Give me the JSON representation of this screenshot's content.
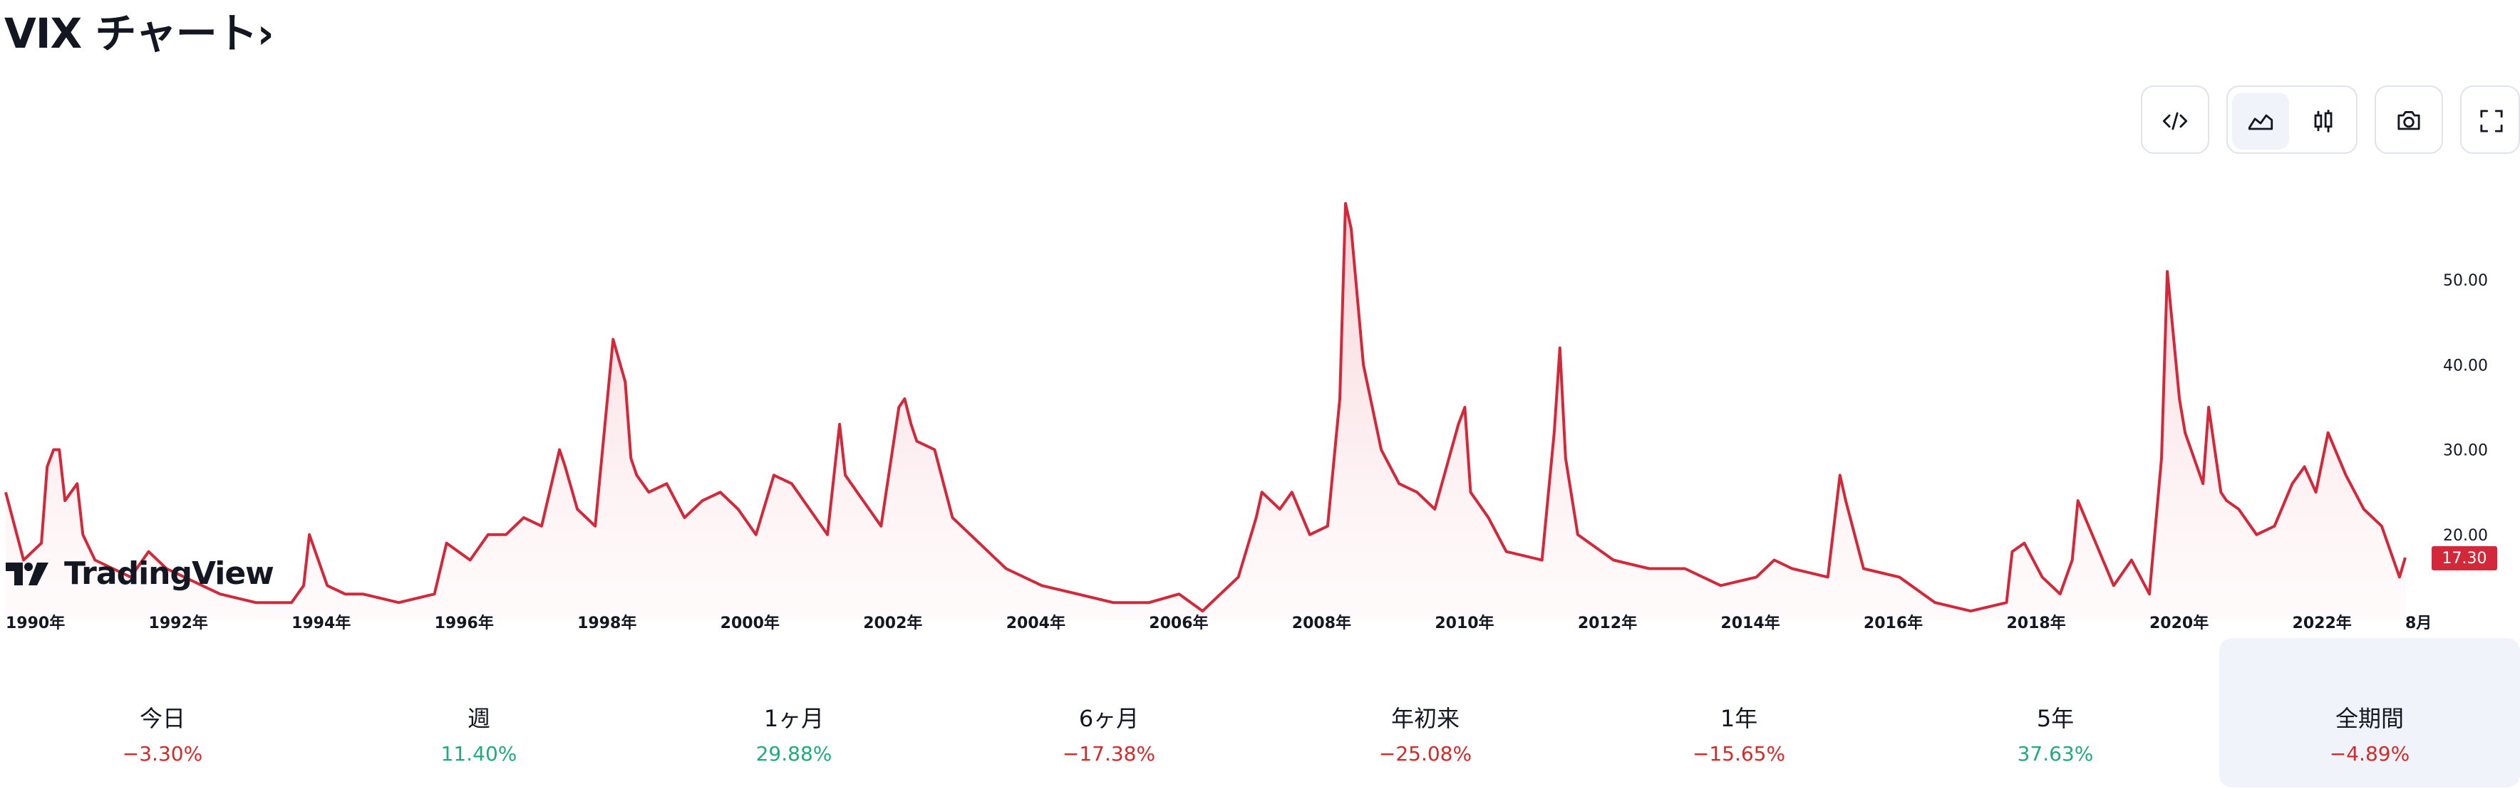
{
  "page_title": "VIX チャート›",
  "toolbar": {
    "embed_icon": "code-embed-icon",
    "area_icon": "area-chart-icon",
    "candle_icon": "candlestick-icon",
    "camera_icon": "camera-icon",
    "fullscreen_icon": "fullscreen-icon"
  },
  "watermark": "TradingView",
  "colors": {
    "line": "#d2283a",
    "fill_top": "#f5c9cf",
    "positive": "#22ab7a",
    "negative": "#d32a2a",
    "tag_bg": "#d2283a"
  },
  "chart_data": {
    "type": "area",
    "title": "",
    "xlabel": "",
    "ylabel": "",
    "ylim": [
      10,
      62
    ],
    "xlim": [
      1990.0,
      2023.75
    ],
    "y_ticks": [
      "50.00",
      "40.00",
      "30.00",
      "20.00"
    ],
    "y_tick_values": [
      50,
      40,
      30,
      20
    ],
    "x_ticks": [
      "1990年",
      "1992年",
      "1994年",
      "1996年",
      "1998年",
      "2000年",
      "2002年",
      "2004年",
      "2006年",
      "2008年",
      "2010年",
      "2012年",
      "2014年",
      "2016年",
      "2018年",
      "2020年",
      "2022年",
      "8月"
    ],
    "x_tick_values": [
      1990.0,
      1992.0,
      1994.0,
      1996.0,
      1998.0,
      2000.0,
      2002.0,
      2004.0,
      2006.0,
      2008.0,
      2010.0,
      2012.0,
      2014.0,
      2016.0,
      2018.0,
      2020.0,
      2022.0,
      2023.58
    ],
    "last_value_label": "17.30",
    "grid": false,
    "series": [
      {
        "x": [
          1990.0,
          1990.25,
          1990.5,
          1990.58,
          1990.67,
          1990.75,
          1990.83,
          1991.0,
          1991.08,
          1991.25,
          1991.5,
          1991.75,
          1992.0,
          1992.25,
          1992.5,
          1992.75,
          1993.0,
          1993.5,
          1994.0,
          1994.17,
          1994.25,
          1994.5,
          1994.75,
          1995.0,
          1995.5,
          1996.0,
          1996.17,
          1996.5,
          1996.75,
          1997.0,
          1997.25,
          1997.5,
          1997.75,
          1997.83,
          1998.0,
          1998.25,
          1998.5,
          1998.67,
          1998.75,
          1998.83,
          1999.0,
          1999.25,
          1999.5,
          1999.75,
          2000.0,
          2000.25,
          2000.5,
          2000.75,
          2001.0,
          2001.25,
          2001.5,
          2001.67,
          2001.75,
          2002.0,
          2002.25,
          2002.5,
          2002.58,
          2002.67,
          2002.75,
          2003.0,
          2003.25,
          2003.5,
          2004.0,
          2004.5,
          2005.0,
          2005.5,
          2006.0,
          2006.42,
          2006.75,
          2007.0,
          2007.25,
          2007.5,
          2007.58,
          2007.83,
          2008.0,
          2008.25,
          2008.5,
          2008.67,
          2008.75,
          2008.83,
          2009.0,
          2009.25,
          2009.5,
          2009.75,
          2010.0,
          2010.33,
          2010.42,
          2010.5,
          2010.75,
          2011.0,
          2011.5,
          2011.67,
          2011.75,
          2011.83,
          2012.0,
          2012.5,
          2013.0,
          2013.5,
          2014.0,
          2014.5,
          2014.75,
          2015.0,
          2015.5,
          2015.67,
          2015.75,
          2016.0,
          2016.5,
          2017.0,
          2017.5,
          2018.0,
          2018.08,
          2018.25,
          2018.5,
          2018.75,
          2018.92,
          2019.0,
          2019.5,
          2019.75,
          2020.0,
          2020.17,
          2020.25,
          2020.42,
          2020.5,
          2020.75,
          2020.83,
          2021.0,
          2021.08,
          2021.25,
          2021.5,
          2021.75,
          2022.0,
          2022.17,
          2022.33,
          2022.5,
          2022.75,
          2023.0,
          2023.25,
          2023.5,
          2023.58
        ],
        "y": [
          25,
          17,
          19,
          28,
          30,
          30,
          24,
          26,
          20,
          17,
          16,
          15,
          18,
          16,
          15,
          14,
          13,
          12,
          12,
          14,
          20,
          14,
          13,
          13,
          12,
          13,
          19,
          17,
          20,
          20,
          22,
          21,
          30,
          28,
          23,
          21,
          43,
          38,
          29,
          27,
          25,
          26,
          22,
          24,
          25,
          23,
          20,
          27,
          26,
          23,
          20,
          33,
          27,
          24,
          21,
          35,
          36,
          33,
          31,
          30,
          22,
          20,
          16,
          14,
          13,
          12,
          12,
          13,
          11,
          13,
          15,
          22,
          25,
          23,
          25,
          20,
          21,
          36,
          59,
          56,
          40,
          30,
          26,
          25,
          23,
          33,
          35,
          25,
          22,
          18,
          17,
          32,
          42,
          29,
          20,
          17,
          16,
          16,
          14,
          15,
          17,
          16,
          15,
          27,
          24,
          16,
          15,
          12,
          11,
          12,
          18,
          19,
          15,
          13,
          17,
          24,
          14,
          17,
          13,
          29,
          51,
          36,
          32,
          26,
          35,
          25,
          24,
          23,
          20,
          21,
          26,
          28,
          25,
          32,
          27,
          23,
          21,
          15,
          17.3
        ]
      }
    ]
  },
  "periods": [
    {
      "label": "今日",
      "value": "−3.30%",
      "sign": "neg"
    },
    {
      "label": "週",
      "value": "11.40%",
      "sign": "pos"
    },
    {
      "label": "1ヶ月",
      "value": "29.88%",
      "sign": "pos"
    },
    {
      "label": "6ヶ月",
      "value": "−17.38%",
      "sign": "neg"
    },
    {
      "label": "年初来",
      "value": "−25.08%",
      "sign": "neg"
    },
    {
      "label": "1年",
      "value": "−15.65%",
      "sign": "neg"
    },
    {
      "label": "5年",
      "value": "37.63%",
      "sign": "pos"
    },
    {
      "label": "全期間",
      "value": "−4.89%",
      "sign": "neg"
    }
  ]
}
